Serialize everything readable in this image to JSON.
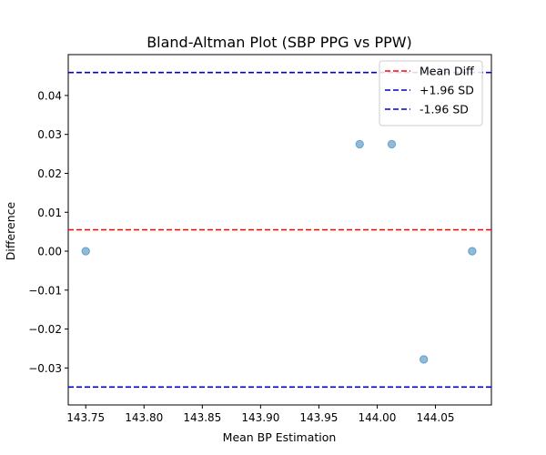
{
  "chart_data": {
    "type": "scatter",
    "title": "Bland-Altman Plot (SBP PPG vs PPW)",
    "xlabel": "Mean BP Estimation",
    "ylabel": "Difference",
    "xlim": [
      143.735,
      144.098
    ],
    "ylim": [
      -0.0395,
      0.0505
    ],
    "xticks": [
      143.75,
      143.8,
      143.85,
      143.9,
      143.95,
      144.0,
      144.05
    ],
    "xtick_labels": [
      "143.75",
      "143.80",
      "143.85",
      "143.90",
      "143.95",
      "144.00",
      "144.05"
    ],
    "yticks": [
      -0.03,
      -0.02,
      -0.01,
      0.0,
      0.01,
      0.02,
      0.03,
      0.04
    ],
    "ytick_labels": [
      "−0.03",
      "−0.02",
      "−0.01",
      "0.00",
      "0.01",
      "0.02",
      "0.03",
      "0.04"
    ],
    "grid": false,
    "legend_position": "top-right",
    "points": {
      "x": [
        143.75,
        143.985,
        144.0125,
        144.04,
        144.0815
      ],
      "y": [
        0.0,
        0.0275,
        0.0275,
        -0.0278,
        0.0
      ]
    },
    "point_color": "#1f77b4",
    "reference_lines": [
      {
        "name": "Mean Diff",
        "y": 0.0055,
        "color": "#ff0000"
      },
      {
        "name": "+1.96 SD",
        "y": 0.0459,
        "color": "#0000cc"
      },
      {
        "name": "-1.96 SD",
        "y": -0.0349,
        "color": "#0000cc"
      }
    ]
  }
}
